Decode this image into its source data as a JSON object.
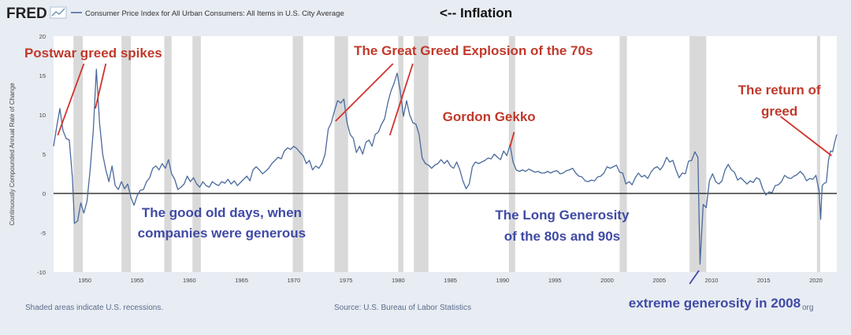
{
  "header": {
    "logo": "FRED",
    "legend_label": "Consumer Price Index for All Urban Consumers: All Items in U.S. City Average",
    "note": "<-- Inflation"
  },
  "footer": {
    "recessions_note": "Shaded areas indicate U.S. recessions.",
    "source": "Source: U.S. Bureau of Labor Statistics",
    "watermark": "org"
  },
  "colors": {
    "line": "#4a6a9c",
    "recession": "#d9d9d9",
    "plot_bg": "#ffffff",
    "annotation_red": "#c0392b",
    "annotation_blue": "#3f4aa6"
  },
  "annotations": [
    {
      "text": "Postwar greed spikes",
      "color": "red",
      "x": 1950.8,
      "y": 17.3
    },
    {
      "text": "The Great Greed Explosion of the 70s",
      "color": "red",
      "x": 1987.2,
      "y": 17.6
    },
    {
      "text": "Gordon Gekko",
      "color": "red",
      "x": 1988.7,
      "y": 9.2
    },
    {
      "text": "The return of",
      "color": "red",
      "x": 2016.5,
      "y": 12.6
    },
    {
      "text": "greed",
      "color": "red",
      "x": 2016.5,
      "y": 9.9
    },
    {
      "text": "The good old days, when",
      "color": "blue",
      "x": 1963.1,
      "y": -3.0
    },
    {
      "text": "companies were generous",
      "color": "blue",
      "x": 1963.1,
      "y": -5.6
    },
    {
      "text": "The Long Generosity",
      "color": "blue",
      "x": 1995.7,
      "y": -3.3
    },
    {
      "text": "of the 80s and 90s",
      "color": "blue",
      "x": 1995.7,
      "y": -6.0
    },
    {
      "text": "extreme generosity in 2008",
      "color": "blue",
      "x": 2010.3,
      "y": -14.5
    }
  ],
  "pointers": [
    {
      "from": [
        1949.9,
        16.5
      ],
      "to": [
        1947.4,
        7.4
      ]
    },
    {
      "from": [
        1952.0,
        16.5
      ],
      "to": [
        1951.0,
        10.8
      ]
    },
    {
      "from": [
        1979.5,
        16.5
      ],
      "to": [
        1974.0,
        9.2
      ]
    },
    {
      "from": [
        1981.4,
        16.5
      ],
      "to": [
        1979.2,
        7.4
      ]
    },
    {
      "from": [
        1991.1,
        7.8
      ],
      "to": [
        1990.7,
        5.9
      ]
    },
    {
      "from": [
        2016.6,
        9.8
      ],
      "to": [
        2021.5,
        4.8
      ]
    },
    {
      "from": [
        2008.8,
        -9.8
      ],
      "to": [
        2007.9,
        -11.5
      ]
    }
  ],
  "chart_data": {
    "type": "line",
    "title": "",
    "ylabel": "Continuously Compounded Annual Rate of Change",
    "xlabel": "",
    "xlim": [
      1947,
      2022
    ],
    "ylim": [
      -10,
      20
    ],
    "x_ticks": [
      1950,
      1955,
      1960,
      1965,
      1970,
      1975,
      1980,
      1985,
      1990,
      1995,
      2000,
      2005,
      2010,
      2015,
      2020
    ],
    "y_ticks": [
      -10,
      -5,
      0,
      5,
      10,
      15,
      20
    ],
    "grid": false,
    "recessions": [
      [
        1948.9,
        1949.8
      ],
      [
        1953.5,
        1954.4
      ],
      [
        1957.6,
        1958.3
      ],
      [
        1960.3,
        1961.1
      ],
      [
        1969.9,
        1970.9
      ],
      [
        1973.9,
        1975.2
      ],
      [
        1980.0,
        1980.5
      ],
      [
        1981.5,
        1982.9
      ],
      [
        1990.6,
        1991.2
      ],
      [
        2001.2,
        2001.9
      ],
      [
        2007.9,
        2009.5
      ],
      [
        2020.1,
        2020.4
      ]
    ],
    "series": [
      {
        "name": "",
        "points": [
          [
            1947.0,
            6.0
          ],
          [
            1947.3,
            8.5
          ],
          [
            1947.6,
            10.8
          ],
          [
            1947.9,
            8.0
          ],
          [
            1948.2,
            7.0
          ],
          [
            1948.5,
            6.8
          ],
          [
            1948.8,
            2.0
          ],
          [
            1949.0,
            -3.8
          ],
          [
            1949.3,
            -3.5
          ],
          [
            1949.6,
            -1.2
          ],
          [
            1949.9,
            -2.5
          ],
          [
            1950.2,
            -1.0
          ],
          [
            1950.5,
            3.0
          ],
          [
            1950.8,
            8.0
          ],
          [
            1951.1,
            15.8
          ],
          [
            1951.4,
            9.0
          ],
          [
            1951.7,
            5.0
          ],
          [
            1952.0,
            3.0
          ],
          [
            1952.3,
            1.5
          ],
          [
            1952.6,
            3.5
          ],
          [
            1952.9,
            1.0
          ],
          [
            1953.2,
            0.5
          ],
          [
            1953.5,
            1.5
          ],
          [
            1953.8,
            0.6
          ],
          [
            1954.1,
            1.2
          ],
          [
            1954.4,
            -0.5
          ],
          [
            1954.7,
            -1.5
          ],
          [
            1955.0,
            -0.3
          ],
          [
            1955.3,
            0.4
          ],
          [
            1955.6,
            0.5
          ],
          [
            1955.9,
            1.5
          ],
          [
            1956.2,
            2.0
          ],
          [
            1956.5,
            3.2
          ],
          [
            1956.8,
            3.5
          ],
          [
            1957.1,
            3.0
          ],
          [
            1957.4,
            3.8
          ],
          [
            1957.7,
            3.2
          ],
          [
            1958.0,
            4.3
          ],
          [
            1958.3,
            2.5
          ],
          [
            1958.6,
            1.8
          ],
          [
            1958.9,
            0.5
          ],
          [
            1959.2,
            0.8
          ],
          [
            1959.5,
            1.2
          ],
          [
            1959.8,
            2.2
          ],
          [
            1960.1,
            1.5
          ],
          [
            1960.4,
            2.0
          ],
          [
            1960.7,
            1.2
          ],
          [
            1961.0,
            0.8
          ],
          [
            1961.3,
            1.5
          ],
          [
            1961.6,
            1.0
          ],
          [
            1961.9,
            0.8
          ],
          [
            1962.2,
            1.5
          ],
          [
            1962.5,
            1.2
          ],
          [
            1962.8,
            1.0
          ],
          [
            1963.1,
            1.5
          ],
          [
            1963.4,
            1.3
          ],
          [
            1963.7,
            1.8
          ],
          [
            1964.0,
            1.2
          ],
          [
            1964.3,
            1.6
          ],
          [
            1964.6,
            1.0
          ],
          [
            1964.9,
            1.4
          ],
          [
            1965.2,
            1.8
          ],
          [
            1965.5,
            2.2
          ],
          [
            1965.8,
            1.6
          ],
          [
            1966.1,
            3.0
          ],
          [
            1966.4,
            3.4
          ],
          [
            1966.7,
            3.0
          ],
          [
            1967.0,
            2.5
          ],
          [
            1967.3,
            2.8
          ],
          [
            1967.6,
            3.2
          ],
          [
            1967.9,
            3.8
          ],
          [
            1968.2,
            4.2
          ],
          [
            1968.5,
            4.6
          ],
          [
            1968.8,
            4.4
          ],
          [
            1969.1,
            5.4
          ],
          [
            1969.4,
            5.8
          ],
          [
            1969.7,
            5.6
          ],
          [
            1970.0,
            6.0
          ],
          [
            1970.3,
            5.7
          ],
          [
            1970.6,
            5.2
          ],
          [
            1970.9,
            4.8
          ],
          [
            1971.2,
            3.8
          ],
          [
            1971.5,
            4.2
          ],
          [
            1971.8,
            3.0
          ],
          [
            1972.1,
            3.5
          ],
          [
            1972.4,
            3.2
          ],
          [
            1972.7,
            3.8
          ],
          [
            1973.0,
            5.0
          ],
          [
            1973.3,
            8.2
          ],
          [
            1973.6,
            9.0
          ],
          [
            1973.9,
            10.5
          ],
          [
            1974.2,
            11.8
          ],
          [
            1974.5,
            11.5
          ],
          [
            1974.8,
            12.0
          ],
          [
            1975.1,
            9.0
          ],
          [
            1975.4,
            7.5
          ],
          [
            1975.7,
            7.0
          ],
          [
            1976.0,
            5.2
          ],
          [
            1976.3,
            6.0
          ],
          [
            1976.6,
            5.0
          ],
          [
            1976.9,
            6.5
          ],
          [
            1977.2,
            6.8
          ],
          [
            1977.5,
            6.0
          ],
          [
            1977.8,
            7.5
          ],
          [
            1978.1,
            7.8
          ],
          [
            1978.4,
            8.8
          ],
          [
            1978.7,
            9.5
          ],
          [
            1979.0,
            11.5
          ],
          [
            1979.3,
            13.0
          ],
          [
            1979.6,
            14.0
          ],
          [
            1979.9,
            15.3
          ],
          [
            1980.2,
            13.0
          ],
          [
            1980.5,
            9.8
          ],
          [
            1980.8,
            11.8
          ],
          [
            1981.1,
            10.0
          ],
          [
            1981.4,
            9.0
          ],
          [
            1981.7,
            8.8
          ],
          [
            1982.0,
            7.5
          ],
          [
            1982.3,
            4.5
          ],
          [
            1982.6,
            3.8
          ],
          [
            1982.9,
            3.6
          ],
          [
            1983.2,
            3.2
          ],
          [
            1983.5,
            3.6
          ],
          [
            1983.8,
            3.8
          ],
          [
            1984.1,
            4.3
          ],
          [
            1984.4,
            3.8
          ],
          [
            1984.7,
            4.2
          ],
          [
            1985.0,
            3.5
          ],
          [
            1985.3,
            3.2
          ],
          [
            1985.6,
            4.0
          ],
          [
            1985.9,
            3.0
          ],
          [
            1986.2,
            1.6
          ],
          [
            1986.5,
            0.6
          ],
          [
            1986.8,
            1.2
          ],
          [
            1987.1,
            3.4
          ],
          [
            1987.4,
            4.0
          ],
          [
            1987.7,
            3.8
          ],
          [
            1988.0,
            4.0
          ],
          [
            1988.3,
            4.2
          ],
          [
            1988.6,
            4.5
          ],
          [
            1988.9,
            4.4
          ],
          [
            1989.2,
            5.0
          ],
          [
            1989.5,
            4.6
          ],
          [
            1989.8,
            4.3
          ],
          [
            1990.1,
            5.4
          ],
          [
            1990.4,
            4.8
          ],
          [
            1990.7,
            6.2
          ],
          [
            1991.0,
            4.0
          ],
          [
            1991.3,
            3.0
          ],
          [
            1991.6,
            2.8
          ],
          [
            1991.9,
            3.0
          ],
          [
            1992.2,
            2.8
          ],
          [
            1992.5,
            3.1
          ],
          [
            1992.8,
            2.9
          ],
          [
            1993.1,
            2.7
          ],
          [
            1993.4,
            2.8
          ],
          [
            1993.7,
            2.6
          ],
          [
            1994.0,
            2.6
          ],
          [
            1994.3,
            2.8
          ],
          [
            1994.6,
            2.6
          ],
          [
            1994.9,
            2.8
          ],
          [
            1995.2,
            2.9
          ],
          [
            1995.5,
            2.5
          ],
          [
            1995.8,
            2.6
          ],
          [
            1996.1,
            2.9
          ],
          [
            1996.4,
            3.0
          ],
          [
            1996.7,
            3.2
          ],
          [
            1997.0,
            2.6
          ],
          [
            1997.3,
            2.2
          ],
          [
            1997.6,
            2.1
          ],
          [
            1997.9,
            1.6
          ],
          [
            1998.2,
            1.5
          ],
          [
            1998.5,
            1.7
          ],
          [
            1998.8,
            1.6
          ],
          [
            1999.1,
            2.1
          ],
          [
            1999.4,
            2.2
          ],
          [
            1999.7,
            2.6
          ],
          [
            2000.0,
            3.4
          ],
          [
            2000.3,
            3.2
          ],
          [
            2000.6,
            3.4
          ],
          [
            2000.9,
            3.6
          ],
          [
            2001.2,
            2.7
          ],
          [
            2001.5,
            2.6
          ],
          [
            2001.8,
            1.2
          ],
          [
            2002.1,
            1.5
          ],
          [
            2002.4,
            1.1
          ],
          [
            2002.7,
            2.0
          ],
          [
            2003.0,
            2.6
          ],
          [
            2003.3,
            2.1
          ],
          [
            2003.6,
            2.3
          ],
          [
            2003.9,
            1.9
          ],
          [
            2004.2,
            2.7
          ],
          [
            2004.5,
            3.2
          ],
          [
            2004.8,
            3.4
          ],
          [
            2005.1,
            3.0
          ],
          [
            2005.4,
            3.6
          ],
          [
            2005.7,
            4.6
          ],
          [
            2006.0,
            4.0
          ],
          [
            2006.3,
            4.2
          ],
          [
            2006.6,
            3.0
          ],
          [
            2006.9,
            2.0
          ],
          [
            2007.2,
            2.6
          ],
          [
            2007.5,
            2.5
          ],
          [
            2007.8,
            4.1
          ],
          [
            2008.1,
            4.2
          ],
          [
            2008.4,
            5.3
          ],
          [
            2008.7,
            4.6
          ],
          [
            2008.9,
            -9.0
          ],
          [
            2009.2,
            -1.4
          ],
          [
            2009.5,
            -1.8
          ],
          [
            2009.8,
            1.6
          ],
          [
            2010.1,
            2.5
          ],
          [
            2010.4,
            1.5
          ],
          [
            2010.7,
            1.2
          ],
          [
            2011.0,
            1.6
          ],
          [
            2011.3,
            3.0
          ],
          [
            2011.6,
            3.7
          ],
          [
            2011.9,
            3.0
          ],
          [
            2012.2,
            2.7
          ],
          [
            2012.5,
            1.7
          ],
          [
            2012.8,
            2.0
          ],
          [
            2013.1,
            1.6
          ],
          [
            2013.4,
            1.2
          ],
          [
            2013.7,
            1.6
          ],
          [
            2014.0,
            1.4
          ],
          [
            2014.3,
            2.0
          ],
          [
            2014.6,
            1.8
          ],
          [
            2014.9,
            0.6
          ],
          [
            2015.2,
            -0.2
          ],
          [
            2015.5,
            0.2
          ],
          [
            2015.8,
            0.1
          ],
          [
            2016.1,
            1.0
          ],
          [
            2016.4,
            1.1
          ],
          [
            2016.7,
            1.5
          ],
          [
            2017.0,
            2.3
          ],
          [
            2017.3,
            2.0
          ],
          [
            2017.6,
            1.9
          ],
          [
            2017.9,
            2.2
          ],
          [
            2018.2,
            2.4
          ],
          [
            2018.5,
            2.8
          ],
          [
            2018.8,
            2.4
          ],
          [
            2019.1,
            1.6
          ],
          [
            2019.4,
            1.9
          ],
          [
            2019.7,
            1.8
          ],
          [
            2020.0,
            2.3
          ],
          [
            2020.3,
            0.3
          ],
          [
            2020.45,
            -3.3
          ],
          [
            2020.6,
            1.0
          ],
          [
            2020.8,
            1.3
          ],
          [
            2021.0,
            1.4
          ],
          [
            2021.2,
            4.2
          ],
          [
            2021.4,
            5.4
          ],
          [
            2021.6,
            5.3
          ],
          [
            2021.8,
            6.5
          ],
          [
            2022.0,
            7.5
          ]
        ]
      }
    ]
  }
}
